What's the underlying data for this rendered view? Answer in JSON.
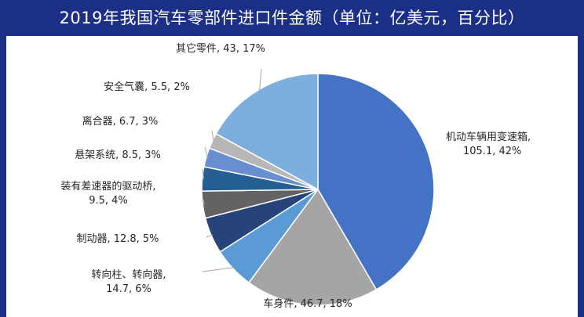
{
  "chart_data": {
    "type": "pie",
    "title": "2019年我国汽车零部件进口件金额（单位：亿美元，百分比）",
    "slices": [
      {
        "name": "机动车辆用变速箱",
        "value": 105.1,
        "percent": "42%",
        "color": "#4472c4",
        "label_lines": [
          "机动车辆用变速箱,",
          "105.1, 42%"
        ]
      },
      {
        "name": "车身件",
        "value": 46.7,
        "percent": "18%",
        "color": "#a5a5a5",
        "label_lines": [
          "车身件, 46.7, 18%"
        ]
      },
      {
        "name": "转向柱、转向器",
        "value": 14.7,
        "percent": "6%",
        "color": "#5b9bd5",
        "label_lines": [
          "转向柱、转向器,",
          "14.7, 6%"
        ]
      },
      {
        "name": "制动器",
        "value": 12.8,
        "percent": "5%",
        "color": "#264478",
        "label_lines": [
          "制动器, 12.8, 5%"
        ]
      },
      {
        "name": "装有差速器的驱动桥",
        "value": 9.5,
        "percent": "4%",
        "color": "#636363",
        "label_lines": [
          "装有差速器的驱动桥,",
          "9.5, 4%"
        ]
      },
      {
        "name": "悬架系统",
        "value": 8.5,
        "percent": "3%",
        "color": "#255e91",
        "label_lines": [
          "悬架系统, 8.5, 3%"
        ]
      },
      {
        "name": "离合器",
        "value": 6.7,
        "percent": "3%",
        "color": "#698ed0",
        "label_lines": [
          "离合器, 6.7, 3%"
        ]
      },
      {
        "name": "安全气囊",
        "value": 5.5,
        "percent": "2%",
        "color": "#b7b7b7",
        "label_lines": [
          "安全气囊, 5.5, 2%"
        ]
      },
      {
        "name": "其它零件",
        "value": 43,
        "percent": "17%",
        "color": "#7cafdd",
        "label_lines": [
          "其它零件, 43, 17%"
        ]
      }
    ],
    "start": "12 o'clock",
    "direction": "clockwise",
    "legend": "none"
  }
}
